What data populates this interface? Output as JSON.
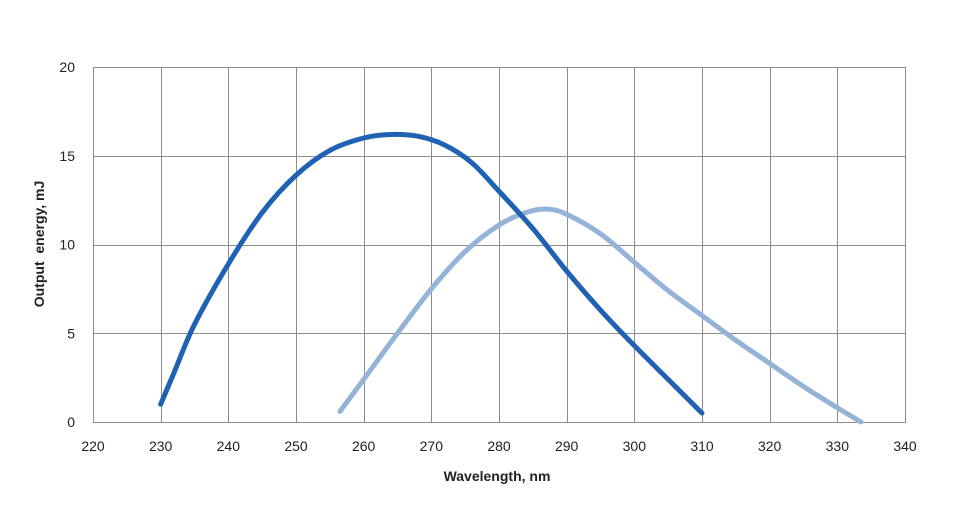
{
  "chart_data": {
    "type": "line",
    "title": "",
    "xlabel": "Wavelength, nm",
    "ylabel": "Output  energy, mJ",
    "xlim": [
      220,
      340
    ],
    "ylim": [
      0,
      20
    ],
    "xticks": [
      220,
      230,
      240,
      250,
      260,
      270,
      280,
      290,
      300,
      310,
      320,
      330,
      340
    ],
    "yticks": [
      0,
      5,
      10,
      15,
      20
    ],
    "grid": true,
    "legend": "none",
    "series": [
      {
        "color": "#1f62b4",
        "x": [
          230,
          232,
          235,
          240,
          245,
          250,
          255,
          260,
          264,
          268,
          272,
          276,
          280,
          285,
          290,
          295,
          300,
          305,
          310
        ],
        "y": [
          1.0,
          2.8,
          5.5,
          8.9,
          11.8,
          13.9,
          15.3,
          16.0,
          16.2,
          16.1,
          15.6,
          14.6,
          13.0,
          10.9,
          8.5,
          6.3,
          4.3,
          2.4,
          0.5
        ]
      },
      {
        "color": "#95b3d7",
        "x": [
          256.5,
          260,
          265,
          270,
          275,
          280,
          284,
          287,
          290,
          295,
          300,
          305,
          310,
          315,
          320,
          325,
          330,
          333.5
        ],
        "y": [
          0.6,
          2.4,
          5.0,
          7.5,
          9.6,
          11.1,
          11.8,
          12.0,
          11.7,
          10.6,
          9.0,
          7.4,
          6.0,
          4.6,
          3.3,
          2.0,
          0.8,
          0.0
        ]
      }
    ]
  }
}
